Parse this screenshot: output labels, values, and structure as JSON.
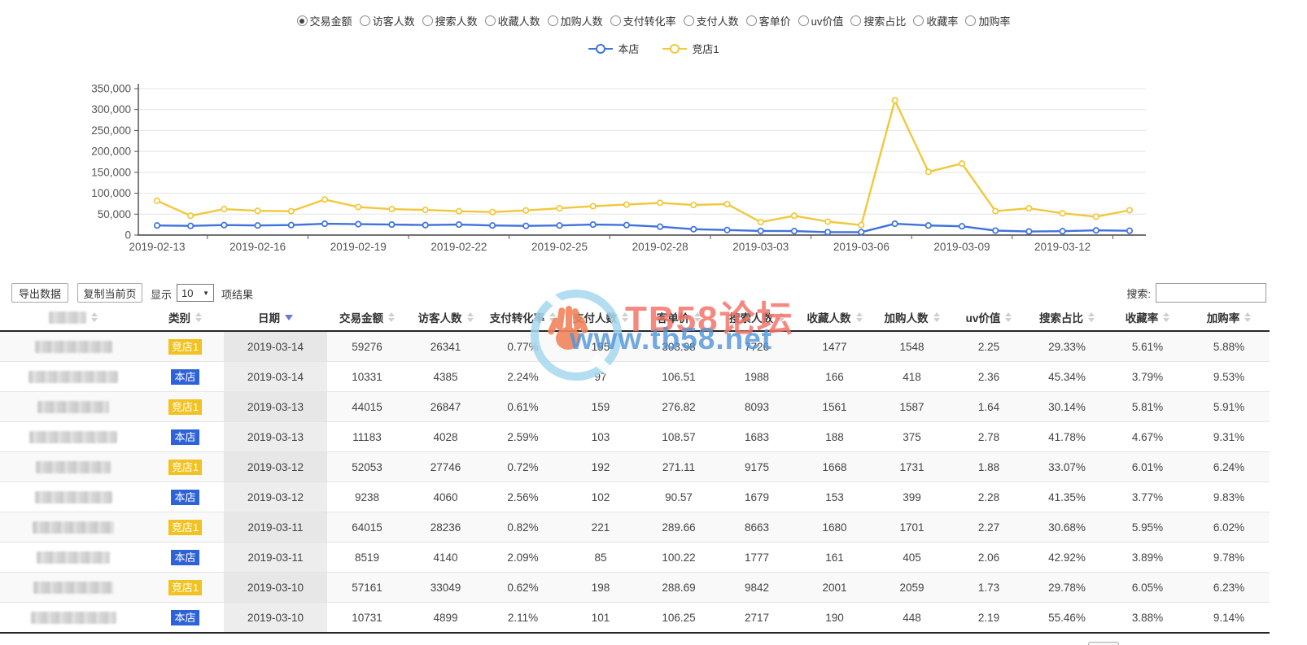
{
  "metrics": {
    "options": [
      {
        "label": "交易金额",
        "selected": true
      },
      {
        "label": "访客人数",
        "selected": false
      },
      {
        "label": "搜索人数",
        "selected": false
      },
      {
        "label": "收藏人数",
        "selected": false
      },
      {
        "label": "加购人数",
        "selected": false
      },
      {
        "label": "支付转化率",
        "selected": false
      },
      {
        "label": "支付人数",
        "selected": false
      },
      {
        "label": "客单价",
        "selected": false
      },
      {
        "label": "uv价值",
        "selected": false
      },
      {
        "label": "搜索占比",
        "selected": false
      },
      {
        "label": "收藏率",
        "selected": false
      },
      {
        "label": "加购率",
        "selected": false
      }
    ]
  },
  "legend": {
    "items": [
      {
        "name": "本店",
        "color": "#3f72dd"
      },
      {
        "name": "竞店1",
        "color": "#f1c83c"
      }
    ]
  },
  "chart_data": {
    "type": "line",
    "title": "",
    "xlabel": "",
    "ylabel": "",
    "ylim": [
      0,
      350000
    ],
    "y_ticks": [
      0,
      50000,
      100000,
      150000,
      200000,
      250000,
      300000,
      350000
    ],
    "grid": "horizontal",
    "legend_position": "top-center",
    "x": [
      "2019-02-13",
      "2019-02-14",
      "2019-02-15",
      "2019-02-16",
      "2019-02-17",
      "2019-02-18",
      "2019-02-19",
      "2019-02-20",
      "2019-02-21",
      "2019-02-22",
      "2019-02-23",
      "2019-02-24",
      "2019-02-25",
      "2019-02-26",
      "2019-02-27",
      "2019-02-28",
      "2019-03-01",
      "2019-03-02",
      "2019-03-03",
      "2019-03-04",
      "2019-03-05",
      "2019-03-06",
      "2019-03-07",
      "2019-03-08",
      "2019-03-09",
      "2019-03-10",
      "2019-03-11",
      "2019-03-12",
      "2019-03-13",
      "2019-03-14"
    ],
    "x_tick_labels": [
      "2019-02-13",
      "2019-02-16",
      "2019-02-19",
      "2019-02-22",
      "2019-02-25",
      "2019-02-28",
      "2019-03-03",
      "2019-03-06",
      "2019-03-09",
      "2019-03-12"
    ],
    "series": [
      {
        "name": "本店",
        "color": "#3f72dd",
        "values": [
          23000,
          22000,
          24000,
          23000,
          24000,
          27000,
          26000,
          25000,
          24000,
          25000,
          23000,
          22000,
          23000,
          25000,
          24000,
          20000,
          14000,
          12000,
          10000,
          9500,
          7000,
          7000,
          27000,
          23000,
          21000,
          10731,
          8519,
          9238,
          11183,
          10331
        ]
      },
      {
        "name": "竞店1",
        "color": "#f1c83c",
        "values": [
          82000,
          46000,
          62000,
          58000,
          57000,
          85000,
          67000,
          62000,
          60000,
          57000,
          55000,
          59000,
          64000,
          69000,
          73000,
          77000,
          72000,
          74000,
          31000,
          46000,
          32000,
          24000,
          322000,
          151000,
          171000,
          57161,
          64015,
          52053,
          44015,
          59276
        ]
      }
    ]
  },
  "toolbar": {
    "export_label": "导出数据",
    "copy_label": "复制当前页",
    "show_label": "显示",
    "page_size": "10",
    "results_label": "项结果",
    "search_label": "搜索:",
    "search_value": ""
  },
  "table": {
    "headers": [
      {
        "label": "",
        "blurred": true,
        "sort": "both"
      },
      {
        "label": "类别",
        "sort": "both"
      },
      {
        "label": "日期",
        "sort": "desc"
      },
      {
        "label": "交易金额",
        "sort": "both"
      },
      {
        "label": "访客人数",
        "sort": "both"
      },
      {
        "label": "支付转化率",
        "sort": "both"
      },
      {
        "label": "支付人数",
        "sort": "both"
      },
      {
        "label": "客单价",
        "sort": "both"
      },
      {
        "label": "搜索人数",
        "sort": "both"
      },
      {
        "label": "收藏人数",
        "sort": "both"
      },
      {
        "label": "加购人数",
        "sort": "both"
      },
      {
        "label": "uv价值",
        "sort": "both"
      },
      {
        "label": "搜索占比",
        "sort": "both"
      },
      {
        "label": "收藏率",
        "sort": "both"
      },
      {
        "label": "加购率",
        "sort": "both"
      }
    ],
    "category_colors": {
      "竞店1": "#f1c221",
      "本店": "#2e62d9"
    },
    "rows": [
      {
        "category": "竞店1",
        "date": "2019-03-14",
        "values": [
          "59276",
          "26341",
          "0.77%",
          "195",
          "303.98",
          "7726",
          "1477",
          "1548",
          "2.25",
          "29.33%",
          "5.61%",
          "5.88%"
        ]
      },
      {
        "category": "本店",
        "date": "2019-03-14",
        "values": [
          "10331",
          "4385",
          "2.24%",
          "97",
          "106.51",
          "1988",
          "166",
          "418",
          "2.36",
          "45.34%",
          "3.79%",
          "9.53%"
        ]
      },
      {
        "category": "竞店1",
        "date": "2019-03-13",
        "values": [
          "44015",
          "26847",
          "0.61%",
          "159",
          "276.82",
          "8093",
          "1561",
          "1587",
          "1.64",
          "30.14%",
          "5.81%",
          "5.91%"
        ]
      },
      {
        "category": "本店",
        "date": "2019-03-13",
        "values": [
          "11183",
          "4028",
          "2.59%",
          "103",
          "108.57",
          "1683",
          "188",
          "375",
          "2.78",
          "41.78%",
          "4.67%",
          "9.31%"
        ]
      },
      {
        "category": "竞店1",
        "date": "2019-03-12",
        "values": [
          "52053",
          "27746",
          "0.72%",
          "192",
          "271.11",
          "9175",
          "1668",
          "1731",
          "1.88",
          "33.07%",
          "6.01%",
          "6.24%"
        ]
      },
      {
        "category": "本店",
        "date": "2019-03-12",
        "values": [
          "9238",
          "4060",
          "2.56%",
          "102",
          "90.57",
          "1679",
          "153",
          "399",
          "2.28",
          "41.35%",
          "3.77%",
          "9.83%"
        ]
      },
      {
        "category": "竞店1",
        "date": "2019-03-11",
        "values": [
          "64015",
          "28236",
          "0.82%",
          "221",
          "289.66",
          "8663",
          "1680",
          "1701",
          "2.27",
          "30.68%",
          "5.95%",
          "6.02%"
        ]
      },
      {
        "category": "本店",
        "date": "2019-03-11",
        "values": [
          "8519",
          "4140",
          "2.09%",
          "85",
          "100.22",
          "1777",
          "161",
          "405",
          "2.06",
          "42.92%",
          "3.89%",
          "9.78%"
        ]
      },
      {
        "category": "竞店1",
        "date": "2019-03-10",
        "values": [
          "57161",
          "33049",
          "0.62%",
          "198",
          "288.69",
          "9842",
          "2001",
          "2059",
          "1.73",
          "29.78%",
          "6.05%",
          "6.23%"
        ]
      },
      {
        "category": "本店",
        "date": "2019-03-10",
        "values": [
          "10731",
          "4899",
          "2.11%",
          "101",
          "106.25",
          "2717",
          "190",
          "448",
          "2.19",
          "55.46%",
          "3.88%",
          "9.14%"
        ]
      }
    ]
  },
  "watermark": {
    "line1": "TB58论坛",
    "line2": "www.tb58.net",
    "text_color": "#f4756b",
    "url_color": "#4f94d9"
  }
}
